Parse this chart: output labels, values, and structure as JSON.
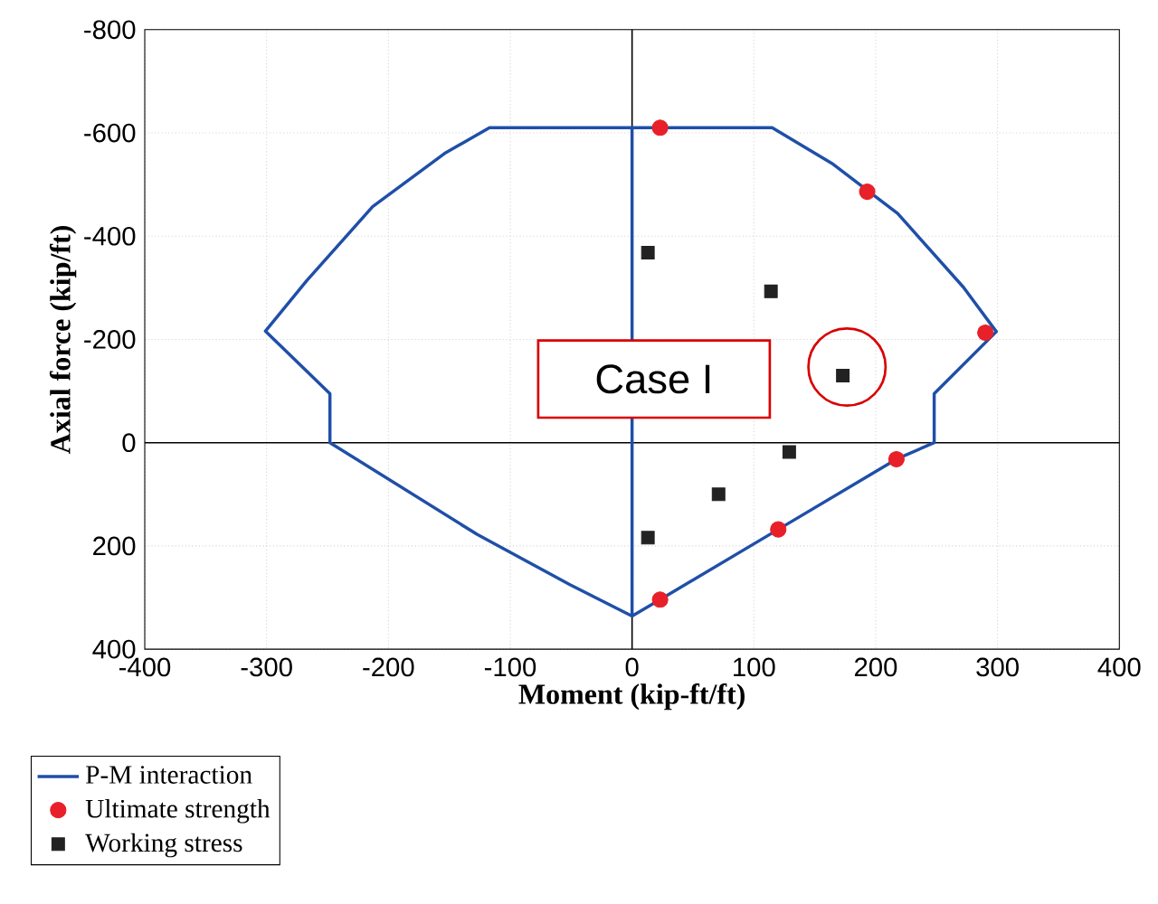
{
  "chart_data": {
    "type": "scatter",
    "xlabel": "Moment (kip-ft/ft)",
    "ylabel": "Axial force (kip/ft)",
    "xlim": [
      -400,
      400
    ],
    "xticks": [
      -400,
      -300,
      -200,
      -100,
      0,
      100,
      200,
      300,
      400
    ],
    "ylim": [
      400,
      -800
    ],
    "yticks": [
      -800,
      -600,
      -400,
      -200,
      0,
      200,
      400
    ],
    "grid": true,
    "legend": "bottom left",
    "annotations": [
      "Case I"
    ],
    "series": [
      {
        "name": "P-M interaction",
        "type": "line",
        "marker": "none",
        "color": "#1f4fa8",
        "x": [
          0,
          -117,
          -154,
          -213,
          -267,
          -301,
          -248,
          -248,
          -127,
          -51,
          0,
          23,
          120,
          217,
          248,
          248,
          299,
          272,
          218,
          164,
          115,
          0,
          0
        ],
        "values": [
          -610,
          -610,
          -560,
          -457,
          -314,
          -216,
          -95,
          0,
          178,
          275,
          336,
          304,
          168,
          32,
          0,
          -95,
          -215,
          -301,
          -444,
          -541,
          -610,
          -610,
          336
        ]
      },
      {
        "name": "Ultimate strength",
        "marker": "circle",
        "color": "#e8202a",
        "x": [
          23,
          193,
          290,
          217,
          120,
          23
        ],
        "values": [
          -610,
          -486,
          -213,
          32,
          168,
          304
        ]
      },
      {
        "name": "Working stress",
        "marker": "square",
        "color": "#222222",
        "x": [
          13,
          114,
          173,
          129,
          71,
          13
        ],
        "values": [
          -368,
          -293,
          -130,
          18,
          100,
          184
        ]
      }
    ]
  }
}
